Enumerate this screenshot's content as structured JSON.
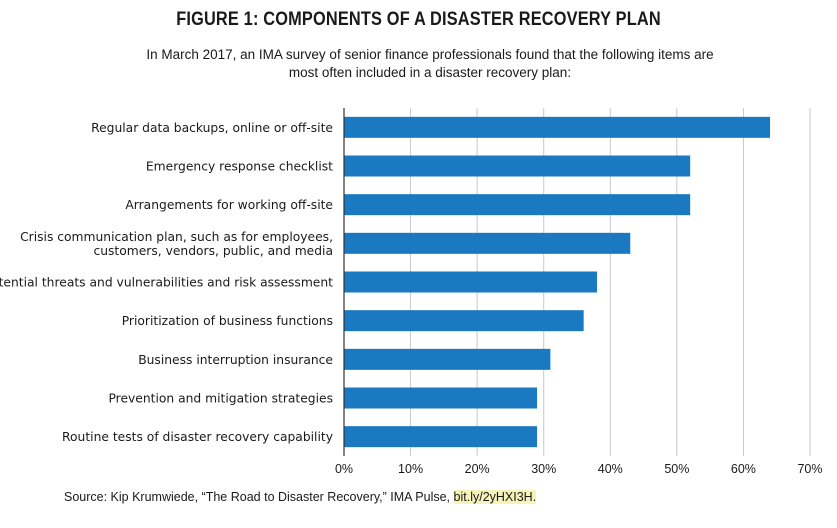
{
  "header": {
    "title": "FIGURE 1: COMPONENTS OF A DISASTER RECOVERY PLAN",
    "subtitle": "In March 2017, an IMA survey of senior finance professionals found that the following items are most often included in a disaster recovery plan:"
  },
  "footer": {
    "source_text": "Source: Kip Krumwiede, “The Road to Disaster Recovery,” IMA Pulse, ",
    "source_link": "bit.ly/2yHXI3H."
  },
  "colors": {
    "bar": "#1a79c1",
    "grid": "#c8c8c8",
    "axis": "#333333"
  },
  "chart_data": {
    "type": "bar",
    "orientation": "horizontal",
    "categories": [
      [
        "Regular data backups, online or off-site"
      ],
      [
        "Emergency response checklist"
      ],
      [
        "Arrangements for working off-site"
      ],
      [
        "Crisis communication plan, such as for employees,",
        "customers, vendors, public, and media"
      ],
      [
        "Potential threats and vulnerabilities and risk assessment"
      ],
      [
        "Prioritization of business functions"
      ],
      [
        "Business interruption insurance"
      ],
      [
        "Prevention and mitigation strategies"
      ],
      [
        "Routine tests of disaster recovery capability"
      ]
    ],
    "values": [
      64,
      52,
      52,
      43,
      38,
      36,
      31,
      29,
      29
    ],
    "xlim": [
      0,
      70
    ],
    "xticks": [
      0,
      10,
      20,
      30,
      40,
      50,
      60,
      70
    ],
    "xtick_labels": [
      "0%",
      "10%",
      "20%",
      "30%",
      "40%",
      "50%",
      "60%",
      "70%"
    ],
    "grid": "vertical"
  }
}
